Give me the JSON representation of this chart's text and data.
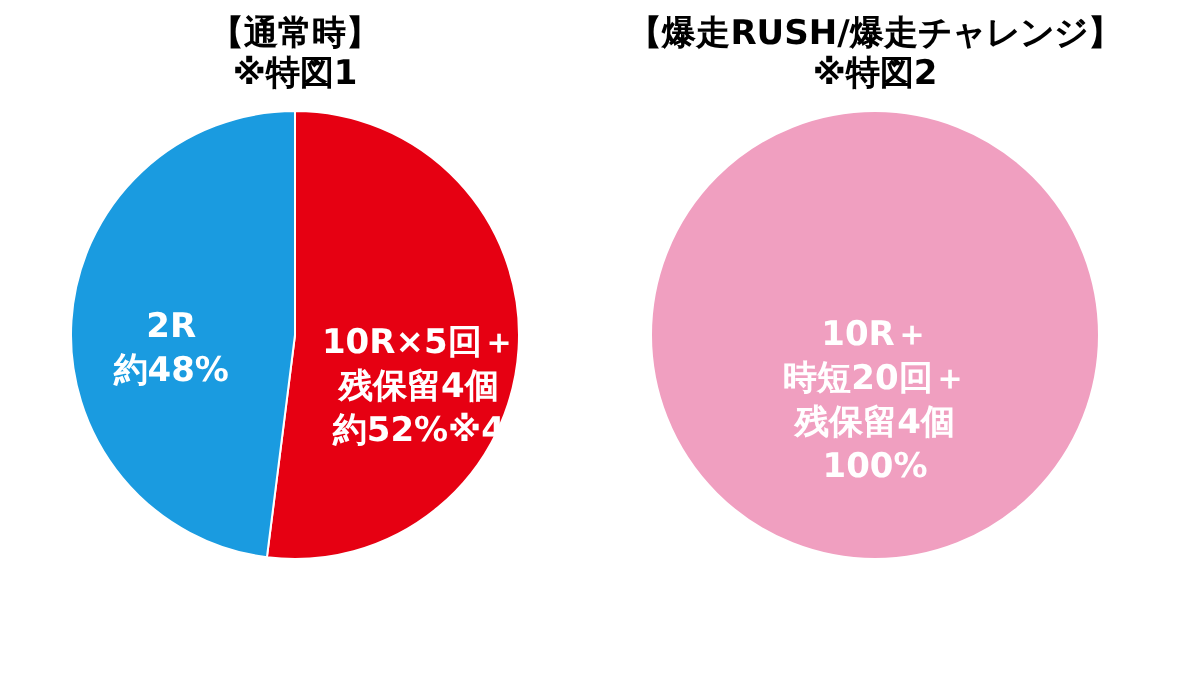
{
  "chart_data": [
    {
      "type": "pie",
      "title": "【通常時】",
      "subtitle": "※特図1",
      "categories": [
        "10R×5回＋残保留4個",
        "2R"
      ],
      "values": [
        52,
        48
      ],
      "value_labels": [
        "約52%※4",
        "約48%"
      ],
      "colors": [
        "#e60012",
        "#1a9be0"
      ],
      "legend": false
    },
    {
      "type": "pie",
      "title": "【爆走RUSH/爆走チャレンジ】",
      "subtitle": "※特図2",
      "categories": [
        "10R＋時短20回＋残保留4個"
      ],
      "values": [
        100
      ],
      "value_labels": [
        "100%"
      ],
      "colors": [
        "#f09fc0"
      ],
      "legend": false
    }
  ]
}
